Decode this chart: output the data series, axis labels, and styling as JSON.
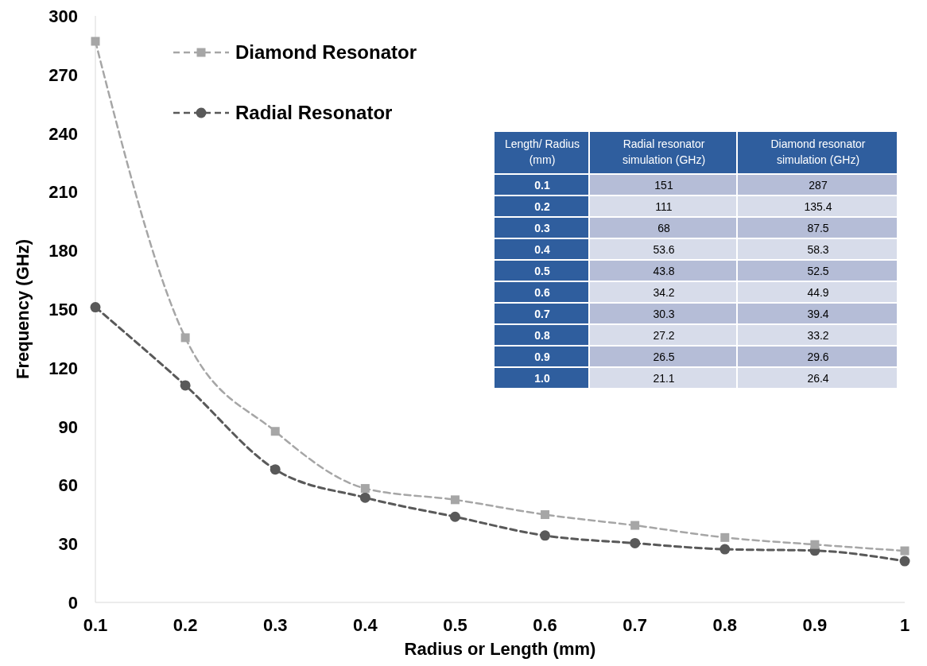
{
  "chart_data": [
    {
      "type": "line",
      "xlabel": "Radius or Length (mm)",
      "ylabel": "Frequency (GHz)",
      "x": [
        0.1,
        0.2,
        0.3,
        0.4,
        0.5,
        0.6,
        0.7,
        0.8,
        0.9,
        1.0
      ],
      "xlim": [
        0.1,
        1
      ],
      "xticks": [
        0.1,
        0.2,
        0.3,
        0.4,
        0.5,
        0.6,
        0.7,
        0.8,
        0.9,
        1
      ],
      "ylim": [
        0,
        300
      ],
      "yticks": [
        0,
        30,
        60,
        90,
        120,
        150,
        180,
        210,
        240,
        270,
        300
      ],
      "series": [
        {
          "name": "Radial Resonator",
          "color": "#595959",
          "marker": "circle",
          "values": [
            151,
            111,
            68,
            53.6,
            43.8,
            34.2,
            30.3,
            27.2,
            26.5,
            21.1
          ]
        },
        {
          "name": "Diamond Resonator",
          "color": "#a6a6a6",
          "marker": "square",
          "values": [
            287,
            135.4,
            87.5,
            58.3,
            52.5,
            44.9,
            39.4,
            33.2,
            29.6,
            26.4
          ]
        }
      ],
      "line_style": "dashed",
      "legend": "top left",
      "grid": false
    },
    {
      "type": "heatmap",
      "ylabel": "Length/ Radius (mm)",
      "categories": [
        "Radial resonator simulation (GHz)",
        "Diamond resonator simulation (GHz)"
      ],
      "y_categories": [
        "0.1",
        "0.2",
        "0.3",
        "0.4",
        "0.5",
        "0.6",
        "0.7",
        "0.8",
        "0.9",
        "1.0"
      ],
      "cells": [
        [
          151,
          287
        ],
        [
          111,
          135.4
        ],
        [
          68,
          87.5
        ],
        [
          53.6,
          58.3
        ],
        [
          43.8,
          52.5
        ],
        [
          34.2,
          44.9
        ],
        [
          30.3,
          39.4
        ],
        [
          27.2,
          33.2
        ],
        [
          26.5,
          29.6
        ],
        [
          21.1,
          26.4
        ]
      ],
      "data_labels": true
    }
  ]
}
